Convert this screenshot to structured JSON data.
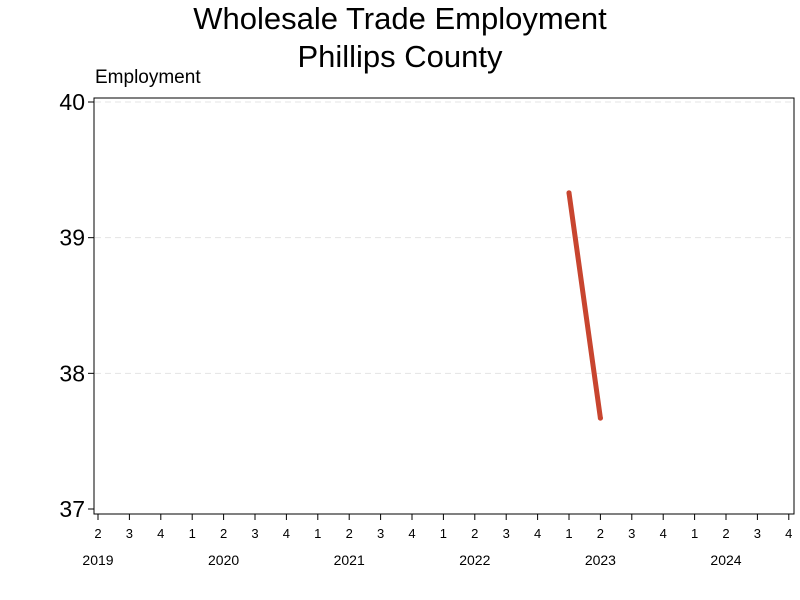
{
  "chart_data": {
    "type": "line",
    "title": "Wholesale Trade Employment",
    "subtitle": "Phillips County",
    "ylabel": "Employment",
    "xlabel": "",
    "ylim": [
      37,
      40
    ],
    "yticks": [
      37,
      38,
      39,
      40
    ],
    "x_quarters": [
      "2019-Q2",
      "2019-Q3",
      "2019-Q4",
      "2020-Q1",
      "2020-Q2",
      "2020-Q3",
      "2020-Q4",
      "2021-Q1",
      "2021-Q2",
      "2021-Q3",
      "2021-Q4",
      "2022-Q1",
      "2022-Q2",
      "2022-Q3",
      "2022-Q4",
      "2023-Q1",
      "2023-Q2",
      "2023-Q3",
      "2023-Q4",
      "2024-Q1",
      "2024-Q2",
      "2024-Q3",
      "2024-Q4"
    ],
    "x_tick_labels": [
      "2",
      "3",
      "4",
      "1",
      "2",
      "3",
      "4",
      "1",
      "2",
      "3",
      "4",
      "1",
      "2",
      "3",
      "4",
      "1",
      "2",
      "3",
      "4",
      "1",
      "2",
      "3",
      "4"
    ],
    "year_labels": [
      {
        "label": "2019",
        "quarter": "2019-Q2"
      },
      {
        "label": "2020",
        "quarter": "2020-Q2"
      },
      {
        "label": "2021",
        "quarter": "2021-Q2"
      },
      {
        "label": "2022",
        "quarter": "2022-Q2"
      },
      {
        "label": "2023",
        "quarter": "2023-Q2"
      },
      {
        "label": "2024",
        "quarter": "2024-Q2"
      }
    ],
    "series": [
      {
        "color": "#c8452f",
        "points": [
          {
            "x": "2023-Q1",
            "y": 39.33
          },
          {
            "x": "2023-Q2",
            "y": 37.67
          }
        ]
      }
    ],
    "grid": "horizontal-dashed",
    "gridline_color": "#e4e4e4",
    "axis_color": "#000000"
  }
}
